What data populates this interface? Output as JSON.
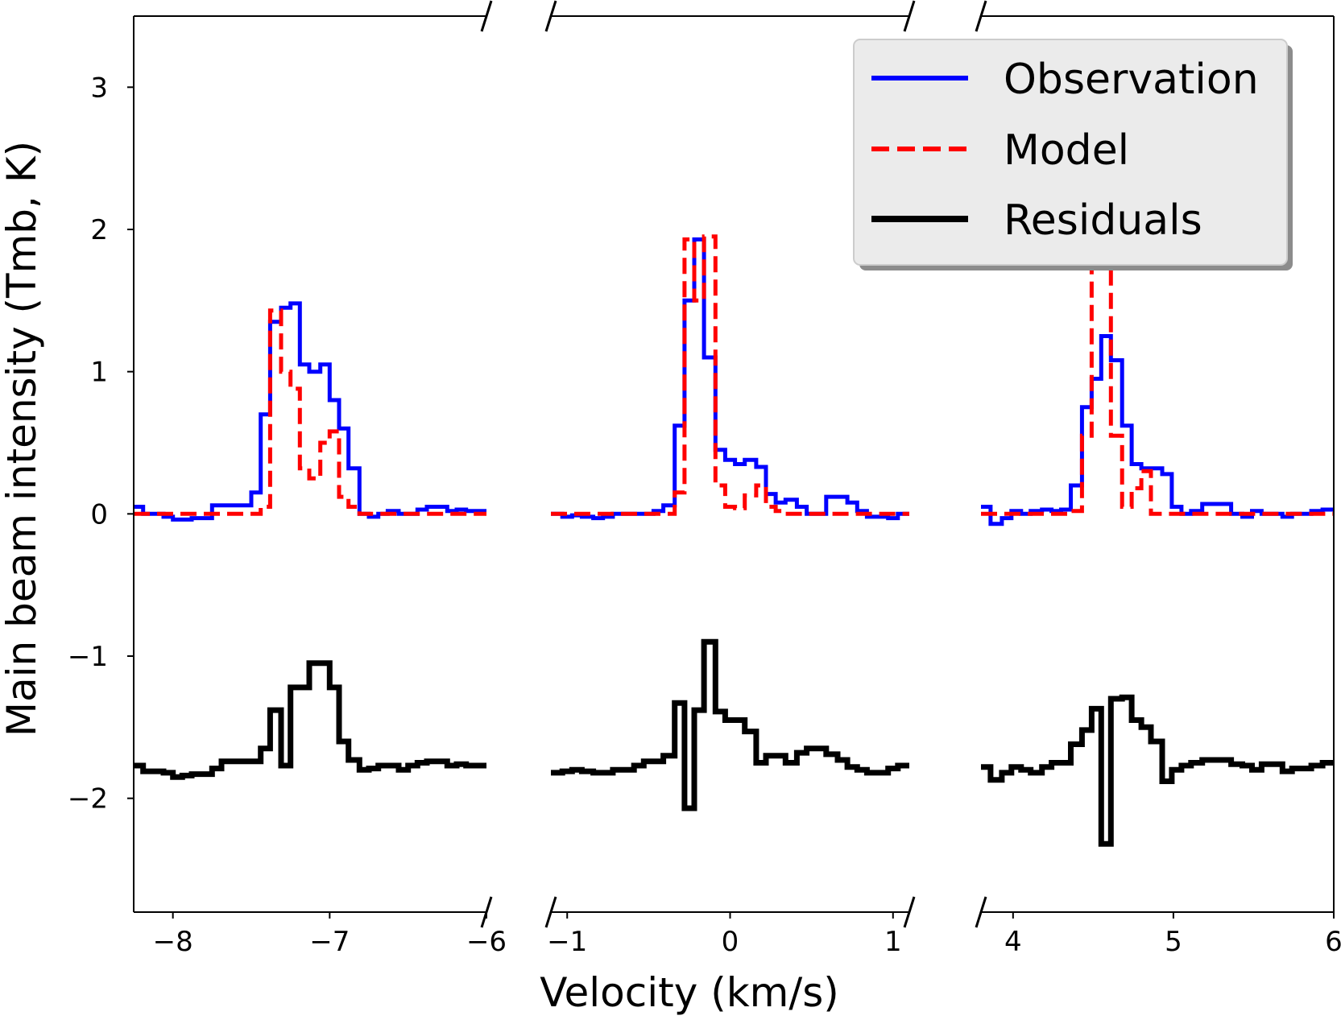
{
  "chart_data": {
    "type": "line",
    "subtype": "step, broken x-axis (3 panels)",
    "xlabel": "Velocity (km/s)",
    "ylabel": "Main beam intensity (Tmb, K)",
    "ylim": [
      -2.8,
      3.5
    ],
    "yticks": [
      -2,
      -1,
      0,
      1,
      2,
      3
    ],
    "ytick_labels": [
      "−2",
      "−1",
      "0",
      "1",
      "2",
      "3"
    ],
    "legend": {
      "position": "top-right",
      "entries": [
        {
          "name": "Observation",
          "color": "#0000ff",
          "style": "solid"
        },
        {
          "name": "Model",
          "color": "#ff0000",
          "style": "dashed"
        },
        {
          "name": "Residuals",
          "color": "#000000",
          "style": "solid"
        }
      ]
    },
    "colors": {
      "observation": "#0000ff",
      "model": "#ff0000",
      "residuals": "#000000",
      "legend_bg": "#ebebeb"
    },
    "panels": [
      {
        "xlim": [
          -8.25,
          -6.0
        ],
        "xticks": [
          -8,
          -7,
          -6
        ],
        "xtick_labels": [
          "−8",
          "−7",
          "−6"
        ],
        "observation": {
          "x": [
            -8.25,
            -8.19,
            -8.13,
            -8.06,
            -8.0,
            -7.94,
            -7.88,
            -7.81,
            -7.75,
            -7.69,
            -7.63,
            -7.56,
            -7.5,
            -7.44,
            -7.38,
            -7.31,
            -7.25,
            -7.19,
            -7.13,
            -7.06,
            -7.0,
            -6.94,
            -6.88,
            -6.81,
            -6.75,
            -6.69,
            -6.63,
            -6.56,
            -6.5,
            -6.44,
            -6.38,
            -6.31,
            -6.25,
            -6.19,
            -6.13,
            -6.06
          ],
          "y": [
            0.05,
            0.0,
            0.0,
            -0.02,
            -0.04,
            -0.04,
            -0.03,
            -0.03,
            0.06,
            0.06,
            0.06,
            0.06,
            0.15,
            0.7,
            1.35,
            1.45,
            1.48,
            1.05,
            1.0,
            1.05,
            0.8,
            0.6,
            0.32,
            0.0,
            -0.02,
            0.0,
            0.02,
            0.0,
            0.0,
            0.03,
            0.05,
            0.05,
            0.02,
            0.03,
            0.02,
            0.02
          ]
        },
        "model": {
          "x": [
            -8.25,
            -8.19,
            -8.13,
            -8.06,
            -8.0,
            -7.94,
            -7.88,
            -7.81,
            -7.75,
            -7.69,
            -7.63,
            -7.56,
            -7.5,
            -7.44,
            -7.38,
            -7.31,
            -7.25,
            -7.19,
            -7.13,
            -7.06,
            -7.0,
            -6.94,
            -6.88,
            -6.81,
            -6.75,
            -6.69,
            -6.63,
            -6.56,
            -6.5,
            -6.44,
            -6.38,
            -6.31,
            -6.25,
            -6.19,
            -6.13,
            -6.06
          ],
          "y": [
            0.0,
            0.0,
            0.0,
            0.0,
            0.0,
            0.0,
            0.0,
            0.0,
            0.0,
            0.0,
            0.0,
            0.0,
            0.0,
            0.05,
            1.43,
            1.0,
            0.88,
            0.32,
            0.25,
            0.5,
            0.58,
            0.12,
            0.05,
            0.0,
            0.0,
            0.0,
            0.0,
            0.0,
            0.0,
            0.0,
            0.0,
            0.0,
            0.0,
            0.0,
            0.0,
            0.0
          ]
        },
        "residuals": {
          "x": [
            -8.25,
            -8.19,
            -8.13,
            -8.06,
            -8.0,
            -7.94,
            -7.88,
            -7.81,
            -7.75,
            -7.69,
            -7.63,
            -7.56,
            -7.5,
            -7.44,
            -7.38,
            -7.31,
            -7.25,
            -7.19,
            -7.13,
            -7.06,
            -7.0,
            -6.94,
            -6.88,
            -6.81,
            -6.75,
            -6.69,
            -6.63,
            -6.56,
            -6.5,
            -6.44,
            -6.38,
            -6.31,
            -6.25,
            -6.19,
            -6.13,
            -6.06
          ],
          "y": [
            -1.77,
            -1.81,
            -1.81,
            -1.82,
            -1.85,
            -1.84,
            -1.83,
            -1.83,
            -1.79,
            -1.74,
            -1.74,
            -1.74,
            -1.74,
            -1.65,
            -1.38,
            -1.77,
            -1.22,
            -1.22,
            -1.05,
            -1.05,
            -1.22,
            -1.6,
            -1.73,
            -1.8,
            -1.79,
            -1.77,
            -1.77,
            -1.8,
            -1.77,
            -1.75,
            -1.74,
            -1.74,
            -1.77,
            -1.76,
            -1.77,
            -1.77
          ]
        }
      },
      {
        "xlim": [
          -1.1,
          1.1
        ],
        "xticks": [
          -1,
          0,
          1
        ],
        "xtick_labels": [
          "−1",
          "0",
          "1"
        ],
        "observation": {
          "x": [
            -1.1,
            -1.03,
            -0.97,
            -0.91,
            -0.84,
            -0.78,
            -0.72,
            -0.66,
            -0.59,
            -0.53,
            -0.47,
            -0.41,
            -0.34,
            -0.28,
            -0.22,
            -0.16,
            -0.09,
            -0.03,
            0.03,
            0.09,
            0.16,
            0.22,
            0.28,
            0.34,
            0.41,
            0.47,
            0.53,
            0.59,
            0.66,
            0.72,
            0.78,
            0.84,
            0.91,
            0.97,
            1.03
          ],
          "y": [
            0.0,
            -0.02,
            -0.01,
            -0.02,
            -0.03,
            -0.02,
            0.0,
            0.0,
            0.0,
            0.0,
            0.02,
            0.06,
            0.62,
            1.5,
            1.93,
            1.1,
            0.45,
            0.38,
            0.35,
            0.38,
            0.33,
            0.14,
            0.08,
            0.1,
            0.05,
            0.0,
            0.0,
            0.12,
            0.12,
            0.08,
            0.02,
            -0.02,
            -0.02,
            -0.03,
            0.0
          ]
        },
        "model": {
          "x": [
            -1.1,
            -1.03,
            -0.97,
            -0.91,
            -0.84,
            -0.78,
            -0.72,
            -0.66,
            -0.59,
            -0.53,
            -0.47,
            -0.41,
            -0.34,
            -0.28,
            -0.22,
            -0.16,
            -0.09,
            -0.03,
            0.03,
            0.09,
            0.16,
            0.22,
            0.28,
            0.34,
            0.41,
            0.47,
            0.53,
            0.59,
            0.66,
            0.72,
            0.78,
            0.84,
            0.91,
            0.97,
            1.03
          ],
          "y": [
            0.0,
            0.0,
            0.0,
            0.0,
            0.0,
            0.0,
            0.0,
            0.0,
            0.0,
            0.0,
            0.0,
            0.0,
            0.15,
            1.93,
            1.5,
            1.95,
            0.2,
            0.05,
            0.04,
            0.13,
            0.2,
            0.05,
            0.02,
            0.0,
            0.0,
            0.0,
            0.0,
            0.0,
            0.0,
            0.0,
            0.0,
            0.0,
            0.0,
            0.0,
            0.0
          ]
        },
        "residuals": {
          "x": [
            -1.1,
            -1.03,
            -0.97,
            -0.91,
            -0.84,
            -0.78,
            -0.72,
            -0.66,
            -0.59,
            -0.53,
            -0.47,
            -0.41,
            -0.34,
            -0.28,
            -0.22,
            -0.16,
            -0.09,
            -0.03,
            0.03,
            0.09,
            0.16,
            0.22,
            0.28,
            0.34,
            0.41,
            0.47,
            0.53,
            0.59,
            0.66,
            0.72,
            0.78,
            0.84,
            0.91,
            0.97,
            1.03
          ],
          "y": [
            -1.82,
            -1.81,
            -1.8,
            -1.81,
            -1.82,
            -1.82,
            -1.8,
            -1.8,
            -1.77,
            -1.74,
            -1.74,
            -1.7,
            -1.33,
            -2.07,
            -1.38,
            -0.9,
            -1.39,
            -1.45,
            -1.45,
            -1.53,
            -1.75,
            -1.7,
            -1.7,
            -1.75,
            -1.68,
            -1.65,
            -1.65,
            -1.69,
            -1.73,
            -1.78,
            -1.8,
            -1.82,
            -1.82,
            -1.79,
            -1.77
          ]
        }
      },
      {
        "xlim": [
          3.8,
          6.0
        ],
        "xticks": [
          4,
          5,
          6
        ],
        "xtick_labels": [
          "4",
          "5",
          "6"
        ],
        "observation": {
          "x": [
            3.8,
            3.86,
            3.93,
            3.99,
            4.05,
            4.11,
            4.18,
            4.24,
            4.3,
            4.36,
            4.43,
            4.49,
            4.55,
            4.61,
            4.68,
            4.74,
            4.8,
            4.86,
            4.93,
            4.99,
            5.05,
            5.11,
            5.18,
            5.24,
            5.3,
            5.36,
            5.43,
            5.49,
            5.55,
            5.61,
            5.68,
            5.74,
            5.8,
            5.86,
            5.93
          ],
          "y": [
            0.05,
            -0.07,
            -0.03,
            0.02,
            0.0,
            0.02,
            0.03,
            0.02,
            0.03,
            0.2,
            0.75,
            0.95,
            1.25,
            1.08,
            0.62,
            0.35,
            0.32,
            0.32,
            0.28,
            0.05,
            0.0,
            0.02,
            0.07,
            0.07,
            0.07,
            0.0,
            -0.02,
            0.02,
            0.0,
            0.0,
            -0.02,
            0.0,
            0.0,
            0.02,
            0.03
          ]
        },
        "model": {
          "x": [
            3.8,
            3.86,
            3.93,
            3.99,
            4.05,
            4.11,
            4.18,
            4.24,
            4.3,
            4.36,
            4.43,
            4.49,
            4.55,
            4.61,
            4.68,
            4.74,
            4.8,
            4.86,
            4.93,
            4.99,
            5.05,
            5.11,
            5.18,
            5.24,
            5.3,
            5.36,
            5.43,
            5.49,
            5.55,
            5.61,
            5.68,
            5.74,
            5.8,
            5.86,
            5.93
          ],
          "y": [
            0.0,
            0.0,
            0.0,
            0.0,
            0.0,
            0.0,
            0.0,
            0.0,
            0.0,
            0.02,
            0.55,
            1.8,
            1.88,
            0.55,
            0.05,
            0.18,
            0.3,
            0.0,
            0.0,
            0.0,
            0.0,
            0.0,
            0.0,
            0.0,
            0.0,
            0.0,
            0.0,
            0.0,
            0.0,
            0.0,
            0.0,
            0.0,
            0.0,
            0.0,
            0.0
          ]
        },
        "residuals": {
          "x": [
            3.8,
            3.86,
            3.93,
            3.99,
            4.05,
            4.11,
            4.18,
            4.24,
            4.3,
            4.36,
            4.43,
            4.49,
            4.55,
            4.61,
            4.68,
            4.74,
            4.8,
            4.86,
            4.93,
            4.99,
            5.05,
            5.11,
            5.18,
            5.24,
            5.3,
            5.36,
            5.43,
            5.49,
            5.55,
            5.61,
            5.68,
            5.74,
            5.8,
            5.86,
            5.93
          ],
          "y": [
            -1.78,
            -1.87,
            -1.82,
            -1.78,
            -1.8,
            -1.82,
            -1.78,
            -1.75,
            -1.75,
            -1.62,
            -1.52,
            -1.37,
            -2.32,
            -1.3,
            -1.29,
            -1.45,
            -1.5,
            -1.6,
            -1.88,
            -1.8,
            -1.77,
            -1.75,
            -1.73,
            -1.73,
            -1.73,
            -1.76,
            -1.77,
            -1.8,
            -1.76,
            -1.76,
            -1.81,
            -1.79,
            -1.79,
            -1.77,
            -1.75
          ]
        }
      }
    ]
  }
}
